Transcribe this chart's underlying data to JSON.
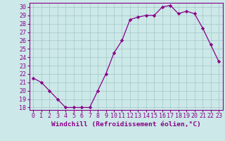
{
  "x": [
    0,
    1,
    2,
    3,
    4,
    5,
    6,
    7,
    8,
    9,
    10,
    11,
    12,
    13,
    14,
    15,
    16,
    17,
    18,
    19,
    20,
    21,
    22,
    23
  ],
  "y": [
    21.5,
    21.0,
    20.0,
    19.0,
    18.0,
    18.0,
    18.0,
    18.0,
    20.0,
    22.0,
    24.5,
    26.0,
    28.5,
    28.8,
    29.0,
    29.0,
    30.0,
    30.2,
    29.2,
    29.5,
    29.2,
    27.5,
    25.5,
    23.5
  ],
  "line_color": "#880088",
  "marker": "D",
  "marker_size": 2.2,
  "bg_color": "#cce8e8",
  "grid_color": "#aacccc",
  "xlabel": "Windchill (Refroidissement éolien,°C)",
  "xlabel_fontsize": 6.8,
  "tick_fontsize": 6.0,
  "ylim_min": 17.7,
  "ylim_max": 30.5,
  "yticks": [
    18,
    19,
    20,
    21,
    22,
    23,
    24,
    25,
    26,
    27,
    28,
    29,
    30
  ],
  "xticks": [
    0,
    1,
    2,
    3,
    4,
    5,
    6,
    7,
    8,
    9,
    10,
    11,
    12,
    13,
    14,
    15,
    16,
    17,
    18,
    19,
    20,
    21,
    22,
    23
  ]
}
